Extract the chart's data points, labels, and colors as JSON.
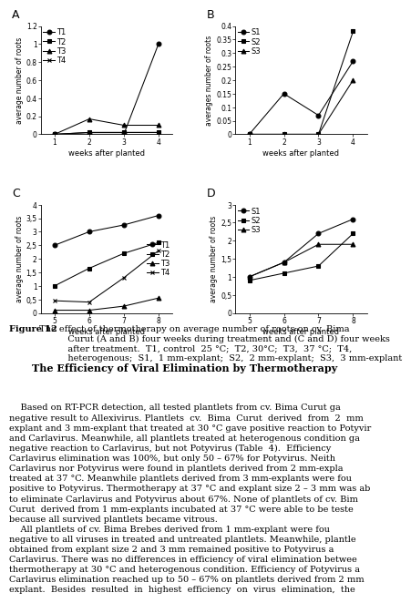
{
  "A": {
    "x": [
      1,
      2,
      3,
      4
    ],
    "series": [
      {
        "name": "T1",
        "y": [
          0,
          0,
          0,
          1.0
        ],
        "marker": "o"
      },
      {
        "name": "T2",
        "y": [
          0,
          0.02,
          0.02,
          0.02
        ],
        "marker": "s"
      },
      {
        "name": "T3",
        "y": [
          0,
          0.17,
          0.1,
          0.1
        ],
        "marker": "^"
      },
      {
        "name": "T4",
        "y": [
          0,
          0.02,
          0.02,
          0.02
        ],
        "marker": "x"
      }
    ],
    "ylabel": "average number of roots",
    "xlabel": "weeks after planted",
    "ylim": [
      0,
      1.2
    ],
    "yticks": [
      0,
      0.2,
      0.4,
      0.6,
      0.8,
      1.0,
      1.2
    ],
    "yticklabels": [
      "0",
      "0.2",
      "0.4",
      "0.6",
      "0.8",
      "1",
      "1.2"
    ],
    "label": "A",
    "legend_loc": "upper left"
  },
  "B": {
    "x": [
      1,
      2,
      3,
      4
    ],
    "series": [
      {
        "name": "S1",
        "y": [
          0,
          0.15,
          0.07,
          0.27
        ],
        "marker": "o"
      },
      {
        "name": "S2",
        "y": [
          0,
          0,
          0,
          0.38
        ],
        "marker": "s"
      },
      {
        "name": "S3",
        "y": [
          0,
          0,
          0,
          0.2
        ],
        "marker": "^"
      }
    ],
    "ylabel": "averages number of roots",
    "xlabel": "weeks after planted",
    "ylim": [
      0,
      0.4
    ],
    "yticks": [
      0,
      0.05,
      0.1,
      0.15,
      0.2,
      0.25,
      0.3,
      0.35,
      0.4
    ],
    "yticklabels": [
      "0",
      "0.05",
      "0.1",
      "0.15",
      "0.2",
      "0.25",
      "0.3",
      "0.35",
      "0.4"
    ],
    "label": "B",
    "legend_loc": "upper left"
  },
  "C": {
    "x": [
      5,
      6,
      7,
      8
    ],
    "series": [
      {
        "name": "T1",
        "y": [
          2.5,
          3.0,
          3.25,
          3.6
        ],
        "marker": "o"
      },
      {
        "name": "T2",
        "y": [
          1.0,
          1.65,
          2.2,
          2.6
        ],
        "marker": "s"
      },
      {
        "name": "T3",
        "y": [
          0.1,
          0.1,
          0.25,
          0.55
        ],
        "marker": "^"
      },
      {
        "name": "T4",
        "y": [
          0.45,
          0.4,
          1.3,
          2.3
        ],
        "marker": "x"
      }
    ],
    "ylabel": "average number of roots",
    "xlabel": "weeks after planted",
    "ylim": [
      0,
      4
    ],
    "yticks": [
      0,
      0.5,
      1.0,
      1.5,
      2.0,
      2.5,
      3.0,
      3.5,
      4.0
    ],
    "yticklabels": [
      "0",
      "0,5",
      "1",
      "1,5",
      "2",
      "2,5",
      "3",
      "3,5",
      "4"
    ],
    "label": "C",
    "legend_loc": "center right"
  },
  "D": {
    "x": [
      5,
      6,
      7,
      8
    ],
    "series": [
      {
        "name": "S1",
        "y": [
          1.0,
          1.4,
          2.2,
          2.6
        ],
        "marker": "o"
      },
      {
        "name": "S2",
        "y": [
          0.9,
          1.1,
          1.3,
          2.2
        ],
        "marker": "s"
      },
      {
        "name": "S3",
        "y": [
          1.0,
          1.4,
          1.9,
          1.9
        ],
        "marker": "^"
      }
    ],
    "ylabel": "average number of roots",
    "xlabel": "weeks after planted",
    "ylim": [
      0,
      3
    ],
    "yticks": [
      0,
      0.5,
      1.0,
      1.5,
      2.0,
      2.5,
      3.0
    ],
    "yticklabels": [
      "0",
      "0,5",
      "1",
      "1,5",
      "2",
      "2,5",
      "3"
    ],
    "label": "D",
    "legend_loc": "upper left"
  },
  "caption_bold": "Figure 12",
  "caption_normal": " The effect of thermotherapy on average number of roots on cv. Bima\n           Curut (A and B) four weeks during treatment and (C and D) four weeks\n           after treatment.  T1, control  25 °C;  T2, 30°C;  T3,  37 °C;  T4,\n           heterogenous;  S1,  1 mm-explant;  S2,  2 mm-explant;  S3,  3 mm-explant",
  "section_title": "The Efficiency of Viral Elimination by Thermotherapy",
  "body_text": "    Based on RT-PCR detection, all tested plantlets from cv. Bima Curut ga\nnegative result to Allexivirus. Plantlets  cv.  Bima  Curut  derived  from  2  mm\nexplant and 3 mm-explant that treated at 30 °C gave positive reaction to Potyvir\nand Carlavirus. Meanwhile, all plantlets treated at heterogenous condition ga\nnegative reaction to Carlavirus, but not Potyvirus (Table  4).  Efficiency\nCarlavirus elimination was 100%, but only 50 – 67% for Potyvirus. Neith\nCarlavirus nor Potyvirus were found in plantlets derived from 2 mm-expla\ntreated at 37 °C. Meanwhile plantlets derived from 3 mm-explants were fou\npositive to Potyvirus. Thermotherapy at 37 °C and explant size 2 – 3 mm was ab\nto eliminate Carlavirus and Potyvirus about 67%. None of plantlets of cv. Bim\nCurut  derived from 1 mm-explants incubated at 37 °C were able to be teste\nbecause all survived plantlets became vitrous.\n    All plantlets of cv. Bima Brebes derived from 1 mm-explant were fou\nnegative to all viruses in treated and untreated plantlets. Meanwhile, plantle\nobtained from explant size 2 and 3 mm remained positive to Potyvirus a\nCarlavirus. There was no differences in efficiency of viral elimination betwee\nthermotherapy at 30 °C and heterogenous condition. Efficiency of Potyvirus a\nCarlavirus elimination reached up to 50 – 67% on plantlets derived from 2 mm\nexplant.  Besides  resulted  in  highest  efficiency  on  virus  elimination,  the"
}
